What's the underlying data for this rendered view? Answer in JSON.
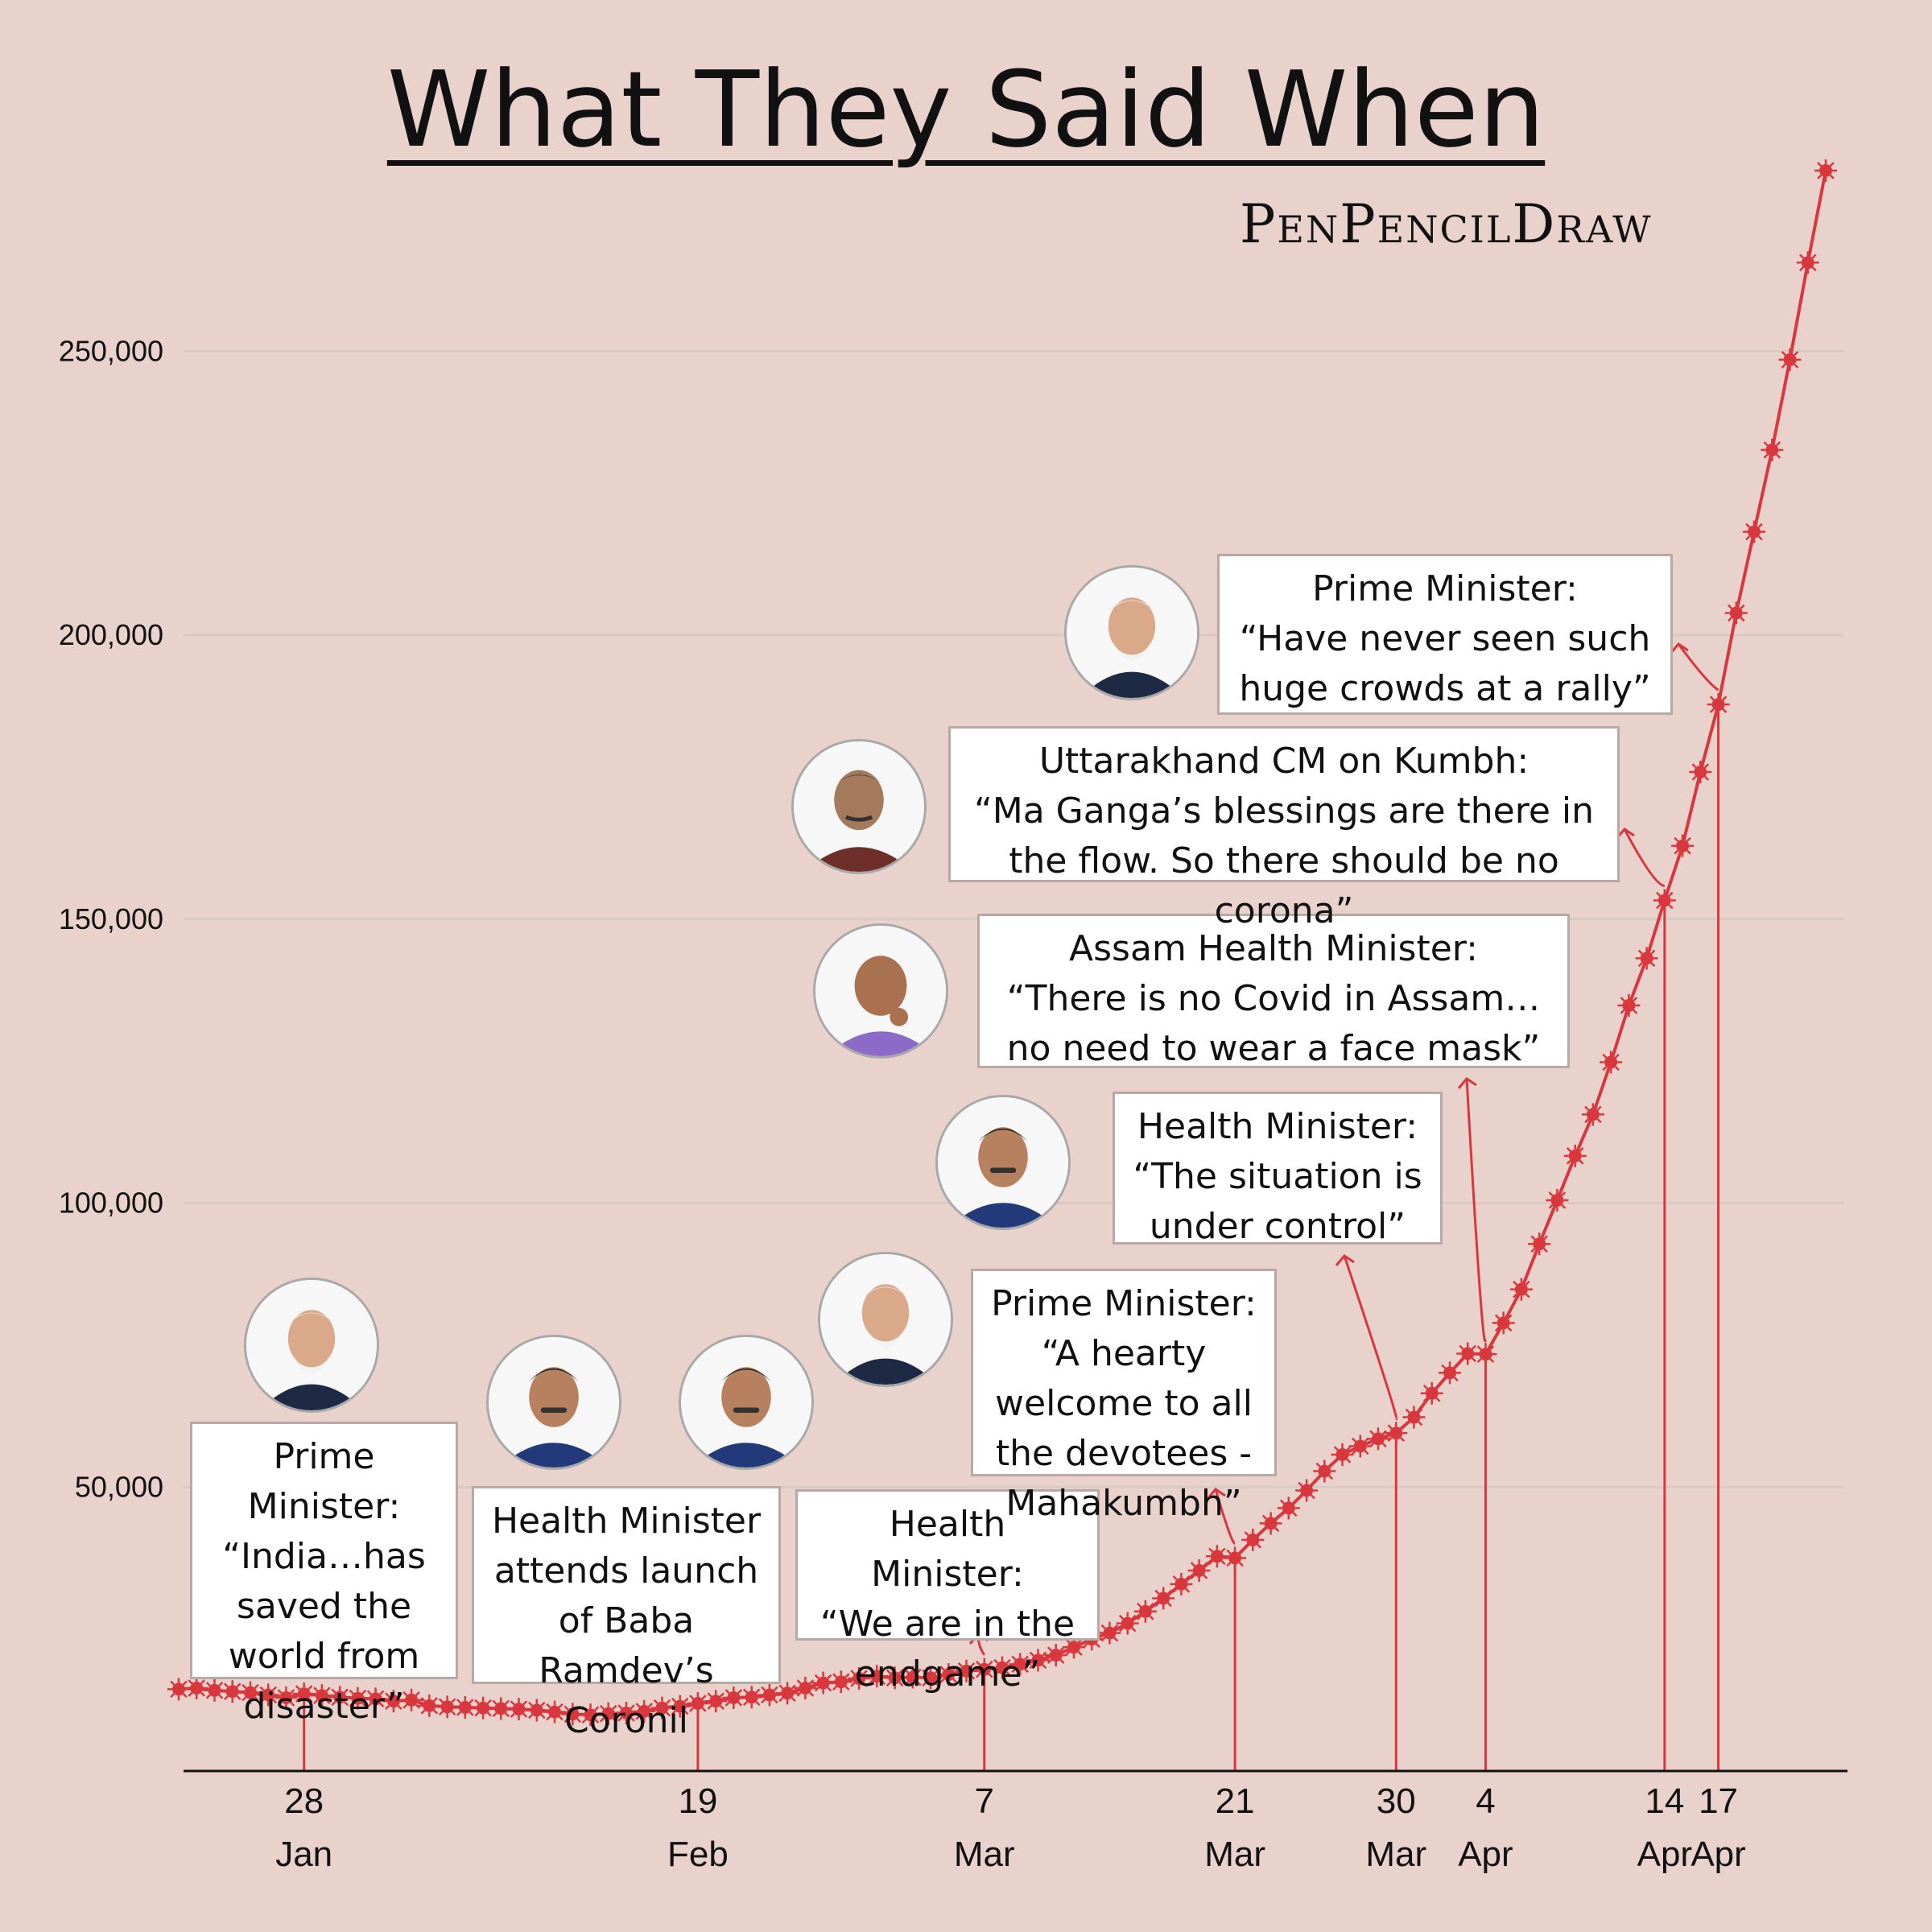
{
  "header": {
    "title": "What They Said When",
    "signature": "PenPencilDraw"
  },
  "colors": {
    "background": "#e9d2cc",
    "line": "#d8383d",
    "grid": "#d9c9c4",
    "box_border": "#b9a9a4"
  },
  "chart_data": {
    "type": "line",
    "title": "What They Said When",
    "ylim": [
      0,
      280000
    ],
    "yticks": [
      50000,
      100000,
      150000,
      200000,
      250000
    ],
    "ytick_labels": [
      "50,000",
      "100,000",
      "150,000",
      "200,000",
      "250,000"
    ],
    "grid": true,
    "xlim": [
      "2021-01-21",
      "2021-04-23"
    ],
    "x_ticks": [
      {
        "date": "2021-01-28",
        "day": "28",
        "month": "Jan"
      },
      {
        "date": "2021-02-19",
        "day": "19",
        "month": "Feb"
      },
      {
        "date": "2021-03-07",
        "day": "7",
        "month": "Mar"
      },
      {
        "date": "2021-03-21",
        "day": "21",
        "month": "Mar"
      },
      {
        "date": "2021-03-30",
        "day": "30",
        "month": "Mar"
      },
      {
        "date": "2021-04-04",
        "day": "4",
        "month": "Apr"
      },
      {
        "date": "2021-04-14",
        "day": "14",
        "month": "Apr"
      },
      {
        "date": "2021-04-17",
        "day": "17",
        "month": "Apr"
      }
    ],
    "series": [
      {
        "values": [
          [
            "2021-01-21",
            14400
          ],
          [
            "2021-01-22",
            14600
          ],
          [
            "2021-01-23",
            14200
          ],
          [
            "2021-01-24",
            14000
          ],
          [
            "2021-01-25",
            13800
          ],
          [
            "2021-01-26",
            13400
          ],
          [
            "2021-01-27",
            12900
          ],
          [
            "2021-01-28",
            13600
          ],
          [
            "2021-01-29",
            13300
          ],
          [
            "2021-01-30",
            13000
          ],
          [
            "2021-01-31",
            12800
          ],
          [
            "2021-02-01",
            12700
          ],
          [
            "2021-02-02",
            12300
          ],
          [
            "2021-02-03",
            12500
          ],
          [
            "2021-02-04",
            11500
          ],
          [
            "2021-02-05",
            11300
          ],
          [
            "2021-02-06",
            11200
          ],
          [
            "2021-02-07",
            11100
          ],
          [
            "2021-02-08",
            11000
          ],
          [
            "2021-02-09",
            10900
          ],
          [
            "2021-02-10",
            10700
          ],
          [
            "2021-02-11",
            10400
          ],
          [
            "2021-02-12",
            10000
          ],
          [
            "2021-02-13",
            9900
          ],
          [
            "2021-02-14",
            10100
          ],
          [
            "2021-02-15",
            10200
          ],
          [
            "2021-02-16",
            10500
          ],
          [
            "2021-02-17",
            11100
          ],
          [
            "2021-02-18",
            11400
          ],
          [
            "2021-02-19",
            11900
          ],
          [
            "2021-02-20",
            12300
          ],
          [
            "2021-02-21",
            12900
          ],
          [
            "2021-02-22",
            13000
          ],
          [
            "2021-02-23",
            13400
          ],
          [
            "2021-02-24",
            13700
          ],
          [
            "2021-02-25",
            14600
          ],
          [
            "2021-02-26",
            15500
          ],
          [
            "2021-02-27",
            15700
          ],
          [
            "2021-02-28",
            16300
          ],
          [
            "2021-03-01",
            16700
          ],
          [
            "2021-03-02",
            16400
          ],
          [
            "2021-03-03",
            16500
          ],
          [
            "2021-03-04",
            16400
          ],
          [
            "2021-03-05",
            17000
          ],
          [
            "2021-03-06",
            17600
          ],
          [
            "2021-03-07",
            17900
          ],
          [
            "2021-03-08",
            18200
          ],
          [
            "2021-03-09",
            18800
          ],
          [
            "2021-03-10",
            19500
          ],
          [
            "2021-03-11",
            20400
          ],
          [
            "2021-03-12",
            21800
          ],
          [
            "2021-03-13",
            23200
          ],
          [
            "2021-03-14",
            24300
          ],
          [
            "2021-03-15",
            26000
          ],
          [
            "2021-03-16",
            28100
          ],
          [
            "2021-03-17",
            30400
          ],
          [
            "2021-03-18",
            32900
          ],
          [
            "2021-03-19",
            35300
          ],
          [
            "2021-03-20",
            37800
          ],
          [
            "2021-03-21",
            37500
          ],
          [
            "2021-03-22",
            40700
          ],
          [
            "2021-03-23",
            43600
          ],
          [
            "2021-03-24",
            46300
          ],
          [
            "2021-03-25",
            49400
          ],
          [
            "2021-03-26",
            52800
          ],
          [
            "2021-03-27",
            55700
          ],
          [
            "2021-03-28",
            57200
          ],
          [
            "2021-03-29",
            58500
          ],
          [
            "2021-03-30",
            59500
          ],
          [
            "2021-03-31",
            62300
          ],
          [
            "2021-04-01",
            66500
          ],
          [
            "2021-04-02",
            70100
          ],
          [
            "2021-04-03",
            73500
          ],
          [
            "2021-04-04",
            73400
          ],
          [
            "2021-04-05",
            78900
          ],
          [
            "2021-04-06",
            84800
          ],
          [
            "2021-04-07",
            92800
          ],
          [
            "2021-04-08",
            100500
          ],
          [
            "2021-04-09",
            108300
          ],
          [
            "2021-04-10",
            115600
          ],
          [
            "2021-04-11",
            124800
          ],
          [
            "2021-04-12",
            134800
          ],
          [
            "2021-04-13",
            143100
          ],
          [
            "2021-04-14",
            153300
          ],
          [
            "2021-04-15",
            162900
          ],
          [
            "2021-04-16",
            175900
          ],
          [
            "2021-04-17",
            187800
          ],
          [
            "2021-04-18",
            203900
          ],
          [
            "2021-04-19",
            218200
          ],
          [
            "2021-04-20",
            232600
          ],
          [
            "2021-04-21",
            248500
          ],
          [
            "2021-04-22",
            265600
          ],
          [
            "2021-04-23",
            281800
          ]
        ]
      }
    ],
    "annotations": [
      {
        "date": "2021-01-28",
        "speaker": "Prime Minister:",
        "text": "“India…has saved the world from disaster”"
      },
      {
        "date": "2021-02-19",
        "speaker": "Health Minister",
        "text": "attends launch of Baba Ramdev’s Coronil"
      },
      {
        "date": "2021-03-07",
        "speaker": "Health Minister:",
        "text": "“We are in the endgame”"
      },
      {
        "date": "2021-03-21",
        "speaker": "Prime Minister:",
        "text": "“A hearty welcome to all the devotees - Mahakumbh”"
      },
      {
        "date": "2021-03-30",
        "speaker": "Health Minister:",
        "text": "“The situation is under control”"
      },
      {
        "date": "2021-04-04",
        "speaker": "Assam Health Minister:",
        "text": "“There is no Covid in Assam…no need to wear a face mask”"
      },
      {
        "date": "2021-04-14",
        "speaker": "Uttarakhand CM on Kumbh:",
        "text": "“Ma Ganga’s blessings are there in the flow. So there should be no corona”"
      },
      {
        "date": "2021-04-17",
        "speaker": "Prime Minister:",
        "text": "“Have never seen such huge crowds at a rally”"
      }
    ]
  }
}
